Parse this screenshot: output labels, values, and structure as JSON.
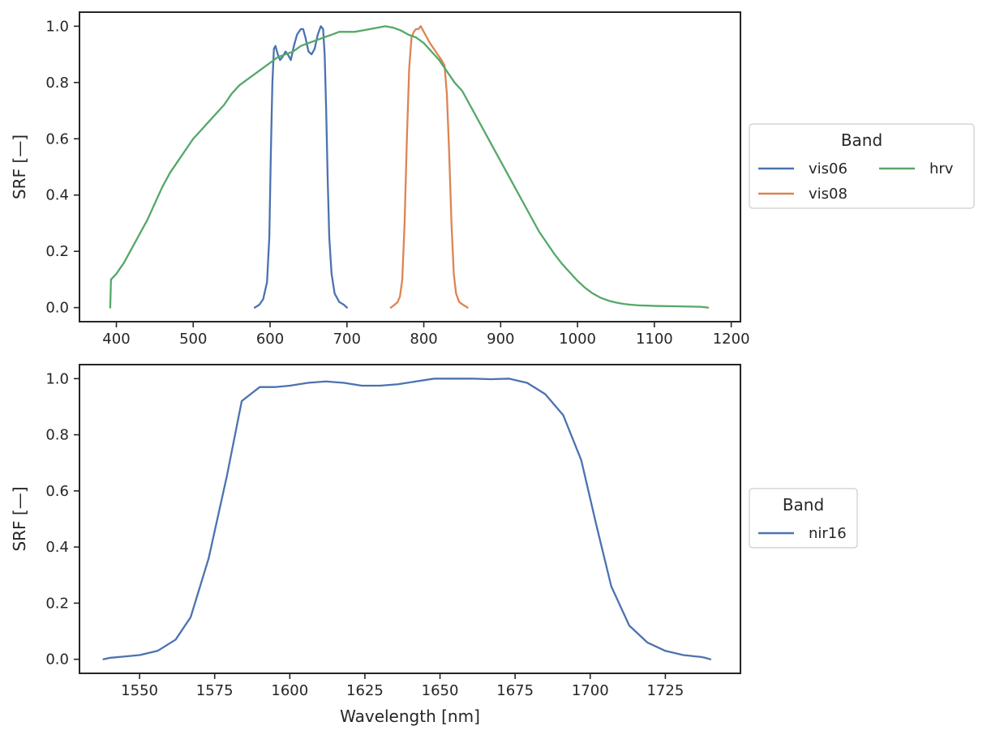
{
  "chart_data": [
    {
      "type": "line",
      "xlabel": "",
      "ylabel": "SRF [—]",
      "xlim": [
        352,
        1212
      ],
      "ylim": [
        -0.05,
        1.05
      ],
      "xticks": [
        400,
        500,
        600,
        700,
        800,
        900,
        1000,
        1100,
        1200
      ],
      "yticks": [
        0.0,
        0.2,
        0.4,
        0.6,
        0.8,
        1.0
      ],
      "grid": false,
      "legend": {
        "title": "Band",
        "placement": "outside-right",
        "columns": 2
      },
      "series": [
        {
          "name": "vis06",
          "color": "#4C72B0",
          "points": [
            [
              580,
              0.0
            ],
            [
              586,
              0.01
            ],
            [
              591,
              0.03
            ],
            [
              596,
              0.09
            ],
            [
              599,
              0.25
            ],
            [
              601,
              0.55
            ],
            [
              603,
              0.8
            ],
            [
              605,
              0.92
            ],
            [
              607,
              0.93
            ],
            [
              610,
              0.9
            ],
            [
              613,
              0.88
            ],
            [
              616,
              0.89
            ],
            [
              620,
              0.91
            ],
            [
              623,
              0.9
            ],
            [
              627,
              0.88
            ],
            [
              631,
              0.93
            ],
            [
              635,
              0.97
            ],
            [
              640,
              0.99
            ],
            [
              643,
              0.99
            ],
            [
              646,
              0.96
            ],
            [
              650,
              0.91
            ],
            [
              654,
              0.9
            ],
            [
              658,
              0.92
            ],
            [
              662,
              0.97
            ],
            [
              666,
              1.0
            ],
            [
              669,
              0.99
            ],
            [
              671,
              0.9
            ],
            [
              673,
              0.7
            ],
            [
              675,
              0.45
            ],
            [
              677,
              0.25
            ],
            [
              680,
              0.12
            ],
            [
              684,
              0.05
            ],
            [
              690,
              0.02
            ],
            [
              696,
              0.01
            ],
            [
              700,
              0.0
            ]
          ]
        },
        {
          "name": "vis08",
          "color": "#DD8452",
          "points": [
            [
              757,
              0.0
            ],
            [
              762,
              0.01
            ],
            [
              766,
              0.02
            ],
            [
              769,
              0.04
            ],
            [
              772,
              0.1
            ],
            [
              775,
              0.3
            ],
            [
              778,
              0.6
            ],
            [
              781,
              0.85
            ],
            [
              784,
              0.96
            ],
            [
              787,
              0.98
            ],
            [
              790,
              0.99
            ],
            [
              793,
              0.99
            ],
            [
              796,
              1.0
            ],
            [
              800,
              0.98
            ],
            [
              804,
              0.96
            ],
            [
              808,
              0.94
            ],
            [
              813,
              0.92
            ],
            [
              818,
              0.9
            ],
            [
              823,
              0.88
            ],
            [
              827,
              0.86
            ],
            [
              830,
              0.76
            ],
            [
              833,
              0.55
            ],
            [
              836,
              0.3
            ],
            [
              839,
              0.12
            ],
            [
              842,
              0.05
            ],
            [
              846,
              0.02
            ],
            [
              851,
              0.01
            ],
            [
              857,
              0.0
            ]
          ]
        },
        {
          "name": "hrv",
          "color": "#55A868",
          "points": [
            [
              392,
              0.0
            ],
            [
              393,
              0.1
            ],
            [
              400,
              0.12
            ],
            [
              410,
              0.16
            ],
            [
              420,
              0.21
            ],
            [
              430,
              0.26
            ],
            [
              440,
              0.31
            ],
            [
              450,
              0.37
            ],
            [
              460,
              0.43
            ],
            [
              470,
              0.48
            ],
            [
              480,
              0.52
            ],
            [
              490,
              0.56
            ],
            [
              500,
              0.6
            ],
            [
              510,
              0.63
            ],
            [
              520,
              0.66
            ],
            [
              530,
              0.69
            ],
            [
              540,
              0.72
            ],
            [
              550,
              0.76
            ],
            [
              560,
              0.79
            ],
            [
              570,
              0.81
            ],
            [
              580,
              0.83
            ],
            [
              590,
              0.85
            ],
            [
              600,
              0.87
            ],
            [
              610,
              0.89
            ],
            [
              620,
              0.9
            ],
            [
              630,
              0.91
            ],
            [
              640,
              0.93
            ],
            [
              650,
              0.94
            ],
            [
              660,
              0.95
            ],
            [
              670,
              0.96
            ],
            [
              680,
              0.97
            ],
            [
              690,
              0.98
            ],
            [
              700,
              0.98
            ],
            [
              710,
              0.98
            ],
            [
              720,
              0.985
            ],
            [
              730,
              0.99
            ],
            [
              740,
              0.995
            ],
            [
              750,
              1.0
            ],
            [
              760,
              0.995
            ],
            [
              770,
              0.985
            ],
            [
              780,
              0.97
            ],
            [
              790,
              0.96
            ],
            [
              800,
              0.94
            ],
            [
              810,
              0.91
            ],
            [
              820,
              0.88
            ],
            [
              830,
              0.84
            ],
            [
              840,
              0.8
            ],
            [
              850,
              0.77
            ],
            [
              860,
              0.72
            ],
            [
              870,
              0.67
            ],
            [
              880,
              0.62
            ],
            [
              890,
              0.57
            ],
            [
              900,
              0.52
            ],
            [
              910,
              0.47
            ],
            [
              920,
              0.42
            ],
            [
              930,
              0.37
            ],
            [
              940,
              0.32
            ],
            [
              950,
              0.27
            ],
            [
              960,
              0.23
            ],
            [
              970,
              0.19
            ],
            [
              980,
              0.155
            ],
            [
              990,
              0.125
            ],
            [
              1000,
              0.095
            ],
            [
              1010,
              0.07
            ],
            [
              1020,
              0.05
            ],
            [
              1030,
              0.035
            ],
            [
              1040,
              0.025
            ],
            [
              1050,
              0.018
            ],
            [
              1060,
              0.013
            ],
            [
              1070,
              0.01
            ],
            [
              1080,
              0.008
            ],
            [
              1090,
              0.007
            ],
            [
              1100,
              0.006
            ],
            [
              1120,
              0.005
            ],
            [
              1140,
              0.004
            ],
            [
              1160,
              0.003
            ],
            [
              1170,
              0.0
            ]
          ]
        }
      ]
    },
    {
      "type": "line",
      "xlabel": "Wavelength [nm]",
      "ylabel": "SRF [—]",
      "xlim": [
        1530,
        1750
      ],
      "ylim": [
        -0.05,
        1.05
      ],
      "xticks": [
        1550,
        1575,
        1600,
        1625,
        1650,
        1675,
        1700,
        1725
      ],
      "yticks": [
        0.0,
        0.2,
        0.4,
        0.6,
        0.8,
        1.0
      ],
      "grid": false,
      "legend": {
        "title": "Band",
        "placement": "outside-right",
        "columns": 1
      },
      "series": [
        {
          "name": "nir16",
          "color": "#4C72B0",
          "points": [
            [
              1538,
              0.0
            ],
            [
              1540,
              0.005
            ],
            [
              1545,
              0.01
            ],
            [
              1550,
              0.015
            ],
            [
              1556,
              0.03
            ],
            [
              1562,
              0.07
            ],
            [
              1567,
              0.15
            ],
            [
              1573,
              0.36
            ],
            [
              1579,
              0.65
            ],
            [
              1584,
              0.92
            ],
            [
              1590,
              0.97
            ],
            [
              1595,
              0.97
            ],
            [
              1600,
              0.975
            ],
            [
              1606,
              0.985
            ],
            [
              1612,
              0.99
            ],
            [
              1618,
              0.985
            ],
            [
              1624,
              0.975
            ],
            [
              1630,
              0.975
            ],
            [
              1636,
              0.98
            ],
            [
              1642,
              0.99
            ],
            [
              1648,
              1.0
            ],
            [
              1655,
              1.0
            ],
            [
              1661,
              1.0
            ],
            [
              1667,
              0.998
            ],
            [
              1673,
              1.0
            ],
            [
              1679,
              0.985
            ],
            [
              1685,
              0.945
            ],
            [
              1691,
              0.87
            ],
            [
              1697,
              0.71
            ],
            [
              1702,
              0.48
            ],
            [
              1707,
              0.26
            ],
            [
              1713,
              0.12
            ],
            [
              1719,
              0.06
            ],
            [
              1725,
              0.03
            ],
            [
              1731,
              0.015
            ],
            [
              1737,
              0.008
            ],
            [
              1738,
              0.006
            ],
            [
              1740,
              0.0
            ]
          ]
        }
      ]
    }
  ]
}
